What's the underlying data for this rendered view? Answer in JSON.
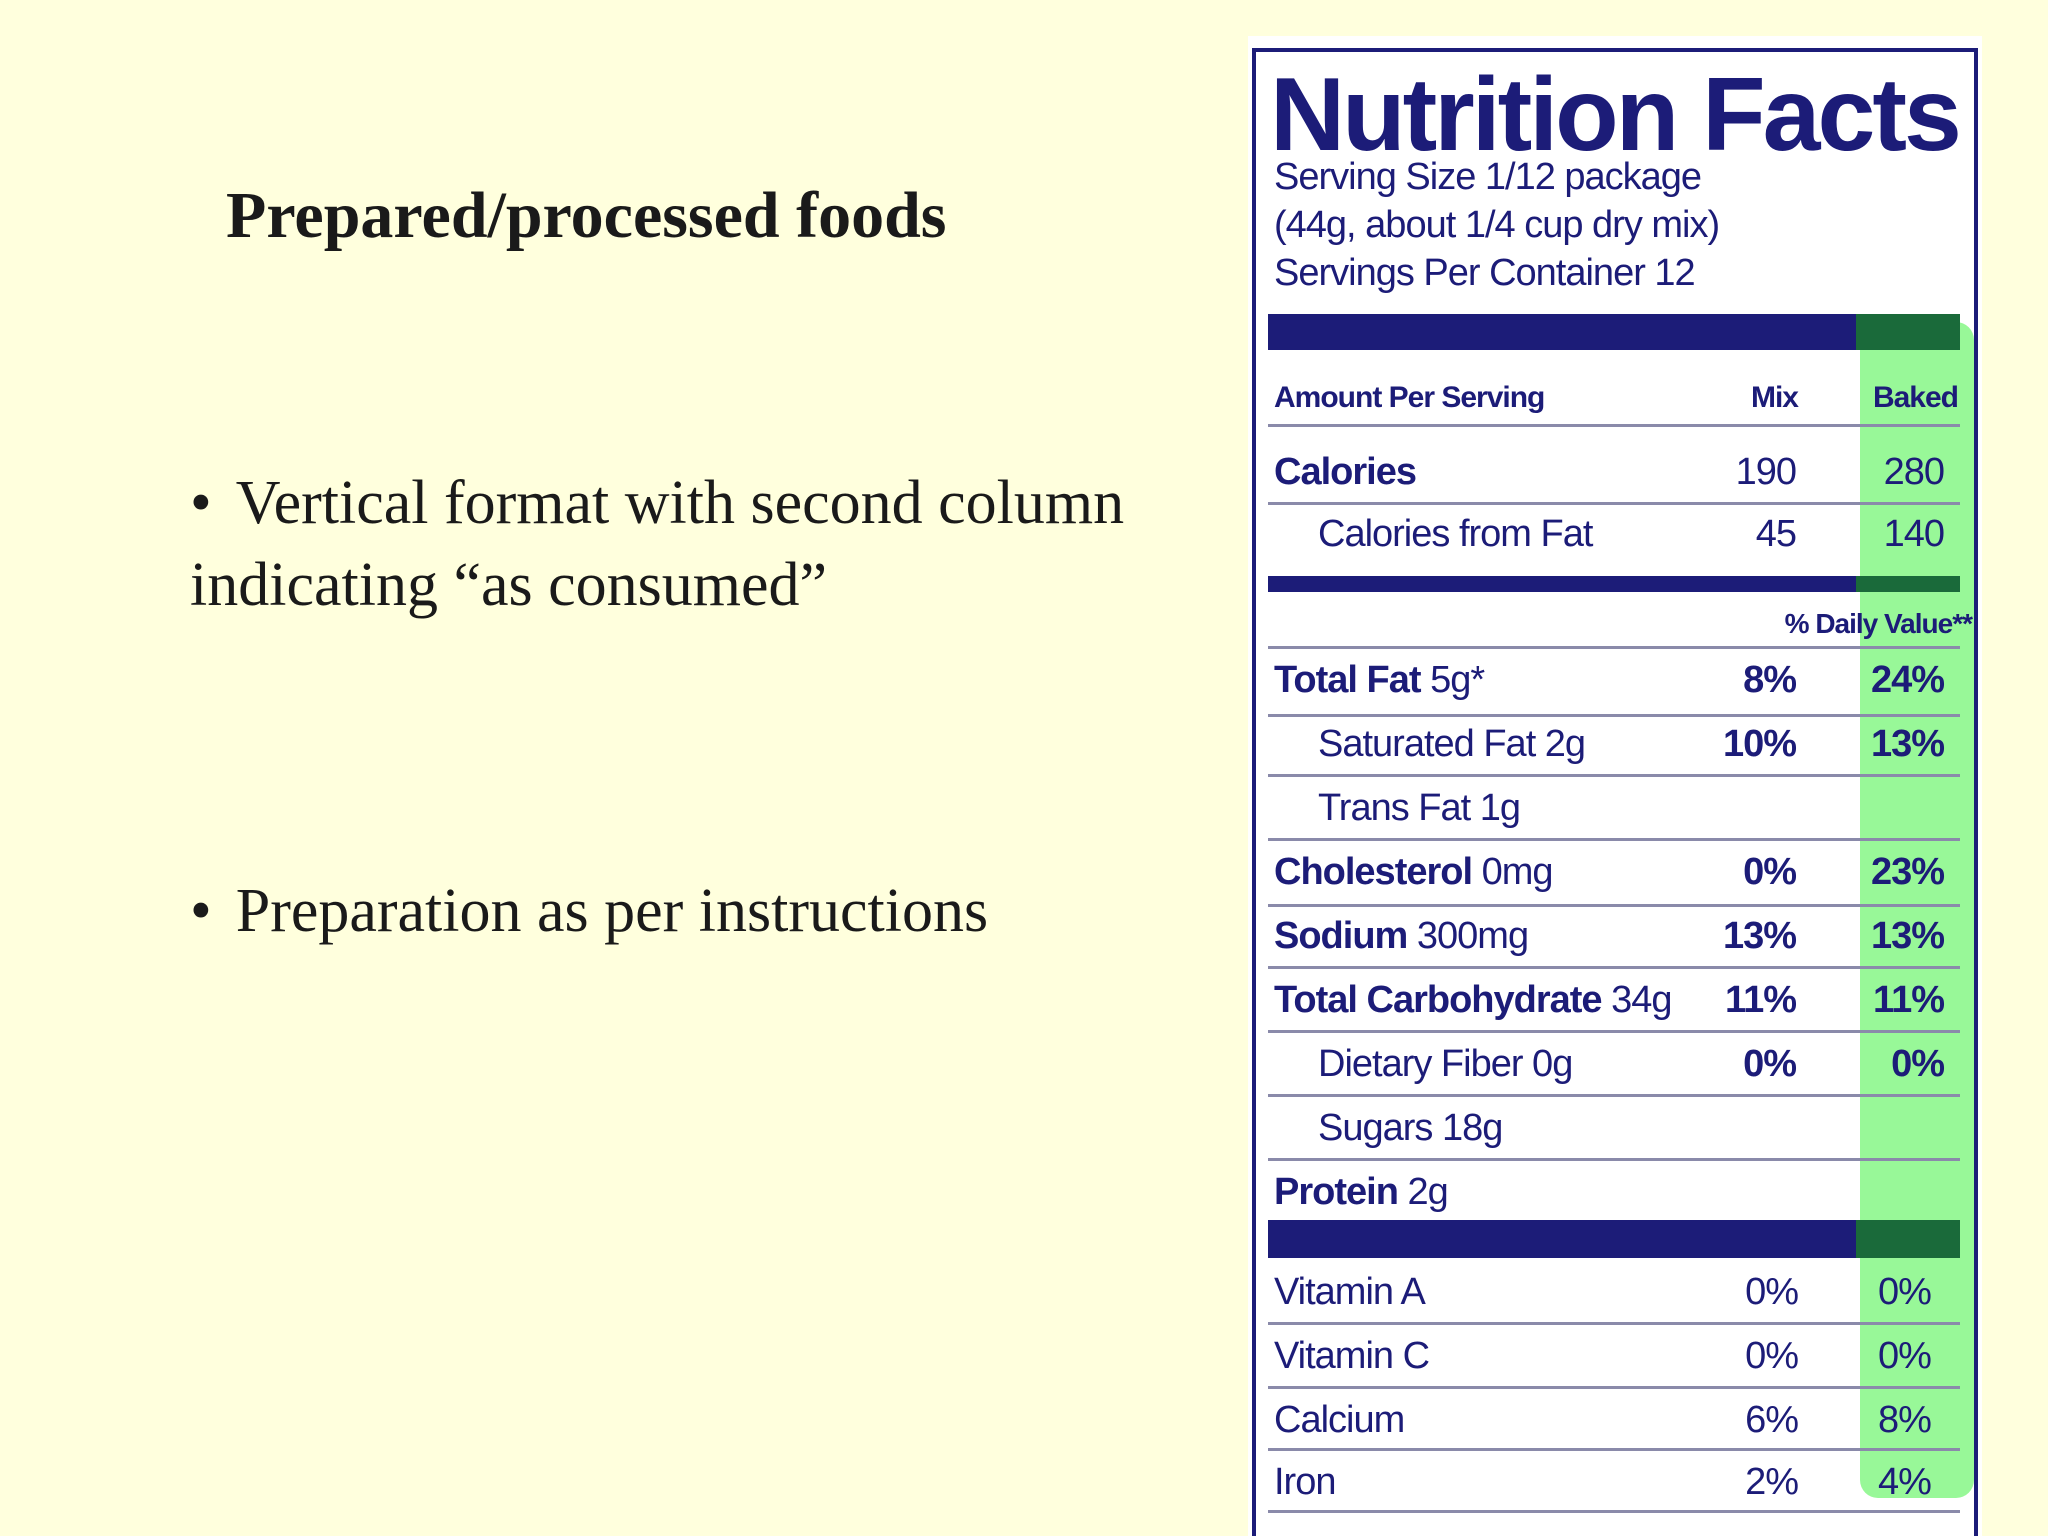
{
  "slide": {
    "title": "Prepared/processed foods",
    "bullets": [
      "Vertical format with second column indicating “as consumed”",
      "Preparation as per instructions"
    ]
  },
  "label": {
    "title": "Nutrition Facts",
    "serving_lines": [
      "Serving Size 1/12 package",
      "(44g, about 1/4 cup dry mix)",
      "Servings Per Container 12"
    ],
    "header": {
      "amount": "Amount Per Serving",
      "mix": "Mix",
      "baked": "Baked"
    },
    "calories": {
      "label": "Calories",
      "mix": "190",
      "baked": "280"
    },
    "calories_fat": {
      "label": "Calories from Fat",
      "mix": "45",
      "baked": "140"
    },
    "dv_header": "% Daily Value**",
    "nutrients": [
      {
        "name": "Total Fat",
        "amount": "5g*",
        "mix": "8%",
        "baked": "24%"
      },
      {
        "name": "Saturated Fat 2g",
        "amount": "",
        "mix": "10%",
        "baked": "13%"
      },
      {
        "name": "Trans Fat 1g",
        "amount": "",
        "mix": "",
        "baked": ""
      },
      {
        "name": "Cholesterol",
        "amount": "0mg",
        "mix": "0%",
        "baked": "23%"
      },
      {
        "name": "Sodium",
        "amount": "300mg",
        "mix": "13%",
        "baked": "13%"
      },
      {
        "name": "Total Carbohydrate",
        "amount": "34g",
        "mix": "11%",
        "baked": "11%"
      },
      {
        "name": "Dietary Fiber 0g",
        "amount": "",
        "mix": "0%",
        "baked": "0%"
      },
      {
        "name": "Sugars 18g",
        "amount": "",
        "mix": "",
        "baked": ""
      },
      {
        "name": "Protein",
        "amount": "2g",
        "mix": "",
        "baked": ""
      }
    ],
    "vitamins": [
      {
        "name": "Vitamin A",
        "mix": "0%",
        "baked": "0%"
      },
      {
        "name": "Vitamin C",
        "mix": "0%",
        "baked": "0%"
      },
      {
        "name": "Calcium",
        "mix": "6%",
        "baked": "8%"
      },
      {
        "name": "Iron",
        "mix": "2%",
        "baked": "4%"
      }
    ],
    "colors": {
      "ink": "#1c1c78",
      "highlight": "#98f898",
      "background": "#ffffdd"
    }
  }
}
